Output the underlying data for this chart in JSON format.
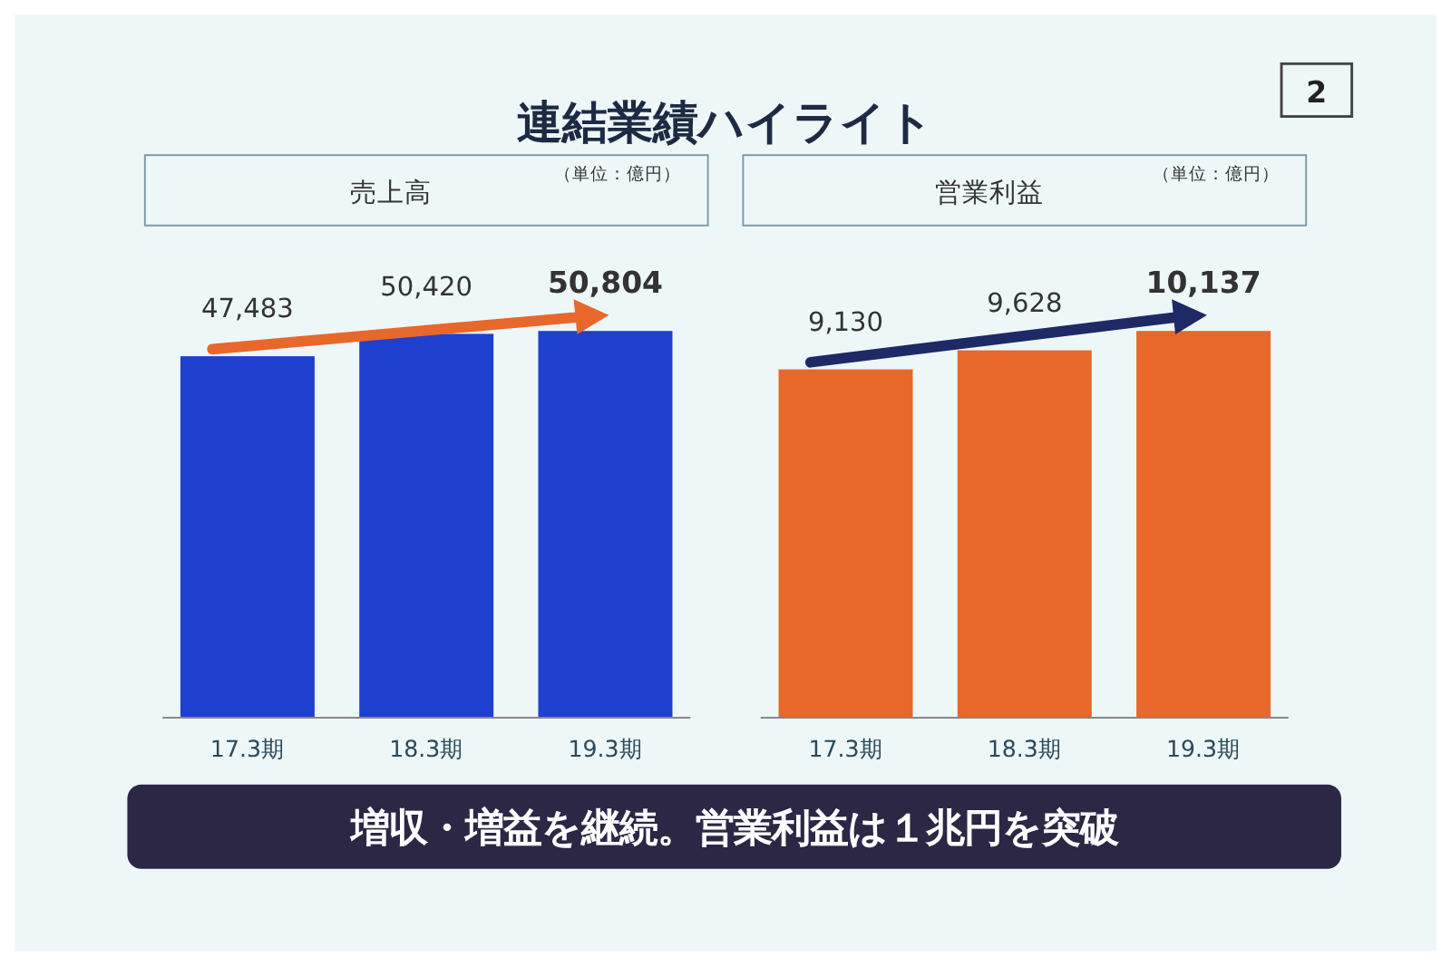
{
  "chart_data": [
    {
      "type": "other",
      "title": "連結業績ハイライト",
      "annotations": [
        "2",
        "増収・増益を継続。営業利益は１兆円を突破"
      ]
    },
    {
      "type": "bar",
      "title": "売上高",
      "subtitle": "（単位：億円）",
      "categories": [
        "17.3期",
        "18.3期",
        "19.3期"
      ],
      "values": [
        47483,
        50420,
        50804
      ],
      "value_labels": [
        "47,483",
        "50,420",
        "50,804"
      ],
      "color": "#1f3fcf"
    },
    {
      "type": "bar",
      "title": "営業利益",
      "subtitle": "（単位：億円）",
      "categories": [
        "17.3期",
        "18.3期",
        "19.3期"
      ],
      "values": [
        9130,
        9628,
        10137
      ],
      "value_labels": [
        "9,130",
        "9,628",
        "10,137"
      ],
      "color": "#e8672a"
    }
  ]
}
